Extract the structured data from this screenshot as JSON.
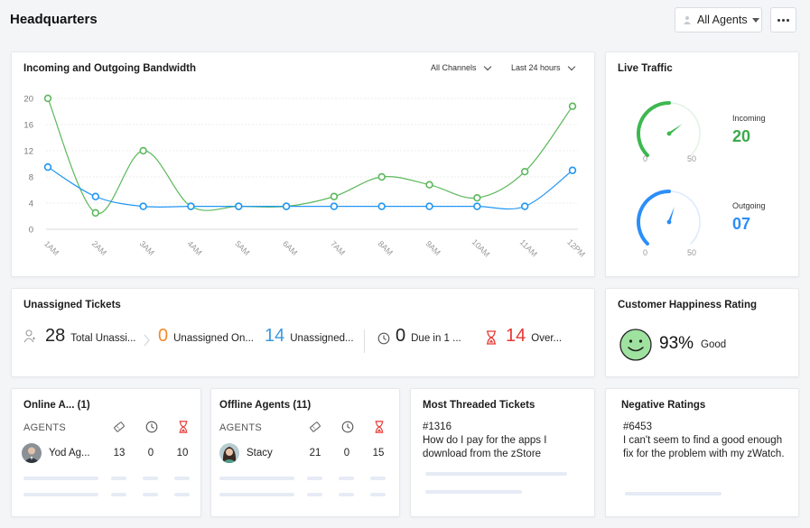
{
  "header": {
    "title": "Headquarters",
    "agent_filter": "All Agents"
  },
  "bandwidth": {
    "title": "Incoming and Outgoing Bandwidth",
    "channel_filter": "All Channels",
    "time_filter": "Last 24 hours"
  },
  "chart_data": {
    "type": "line",
    "x": [
      "1AM",
      "2AM",
      "3AM",
      "4AM",
      "5AM",
      "6AM",
      "7AM",
      "8AM",
      "9AM",
      "10AM",
      "11AM",
      "12PM"
    ],
    "yticks": [
      0,
      4,
      8,
      12,
      16,
      20
    ],
    "ylim": [
      0,
      20
    ],
    "grid": true,
    "series": [
      {
        "values": [
          20,
          2.5,
          12,
          3.5,
          3.5,
          3.5,
          5,
          8,
          6.8,
          4.8,
          8.8,
          18.8
        ],
        "color": "#5cb85c"
      },
      {
        "values": [
          9.5,
          5,
          3.5,
          3.5,
          3.5,
          3.5,
          3.5,
          3.5,
          3.5,
          3.5,
          3.5,
          9
        ],
        "color": "#2196f3"
      }
    ]
  },
  "live_traffic": {
    "title": "Live Traffic",
    "incoming_label": "Incoming",
    "incoming_value": "20",
    "incoming_fraction": 0.4,
    "outgoing_label": "Outgoing",
    "outgoing_value": "07",
    "outgoing_fraction": 0.14,
    "gauge_min": "0",
    "gauge_max": "50",
    "incoming_color": "#3db84f",
    "outgoing_color": "#2c8ef8"
  },
  "unassigned": {
    "title": "Unassigned Tickets",
    "stats": [
      {
        "value": "28",
        "label": "Total Unassi...",
        "color": "#222222"
      },
      {
        "value": "0",
        "label": "Unassigned On...",
        "color": "#f5892a"
      },
      {
        "value": "14",
        "label": "Unassigned...",
        "color": "#3a9ae0"
      },
      {
        "value": "0",
        "label": "Due in 1 ...",
        "color": "#222222"
      },
      {
        "value": "14",
        "label": "Over...",
        "color": "#e53935"
      }
    ]
  },
  "happiness": {
    "title": "Customer Happiness Rating",
    "percent": "93%",
    "label": "Good"
  },
  "online_agents": {
    "title": "Online A... (1)",
    "col_header": "AGENTS",
    "rows": [
      {
        "name": "Yod Ag...",
        "tickets": "13",
        "due": "0",
        "overdue": "10"
      }
    ]
  },
  "offline_agents": {
    "title": "Offline Agents (11)",
    "col_header": "AGENTS",
    "rows": [
      {
        "name": "Stacy",
        "tickets": "21",
        "due": "0",
        "overdue": "15"
      }
    ]
  },
  "threaded": {
    "title": "Most Threaded Tickets",
    "ticket_id": "#1316",
    "ticket_text": "How do I pay for the apps I download from the zStore"
  },
  "negative": {
    "title": "Negative Ratings",
    "ticket_id": "#6453",
    "ticket_text": "I can't seem to find a good enough fix for the problem with my zWatch."
  }
}
